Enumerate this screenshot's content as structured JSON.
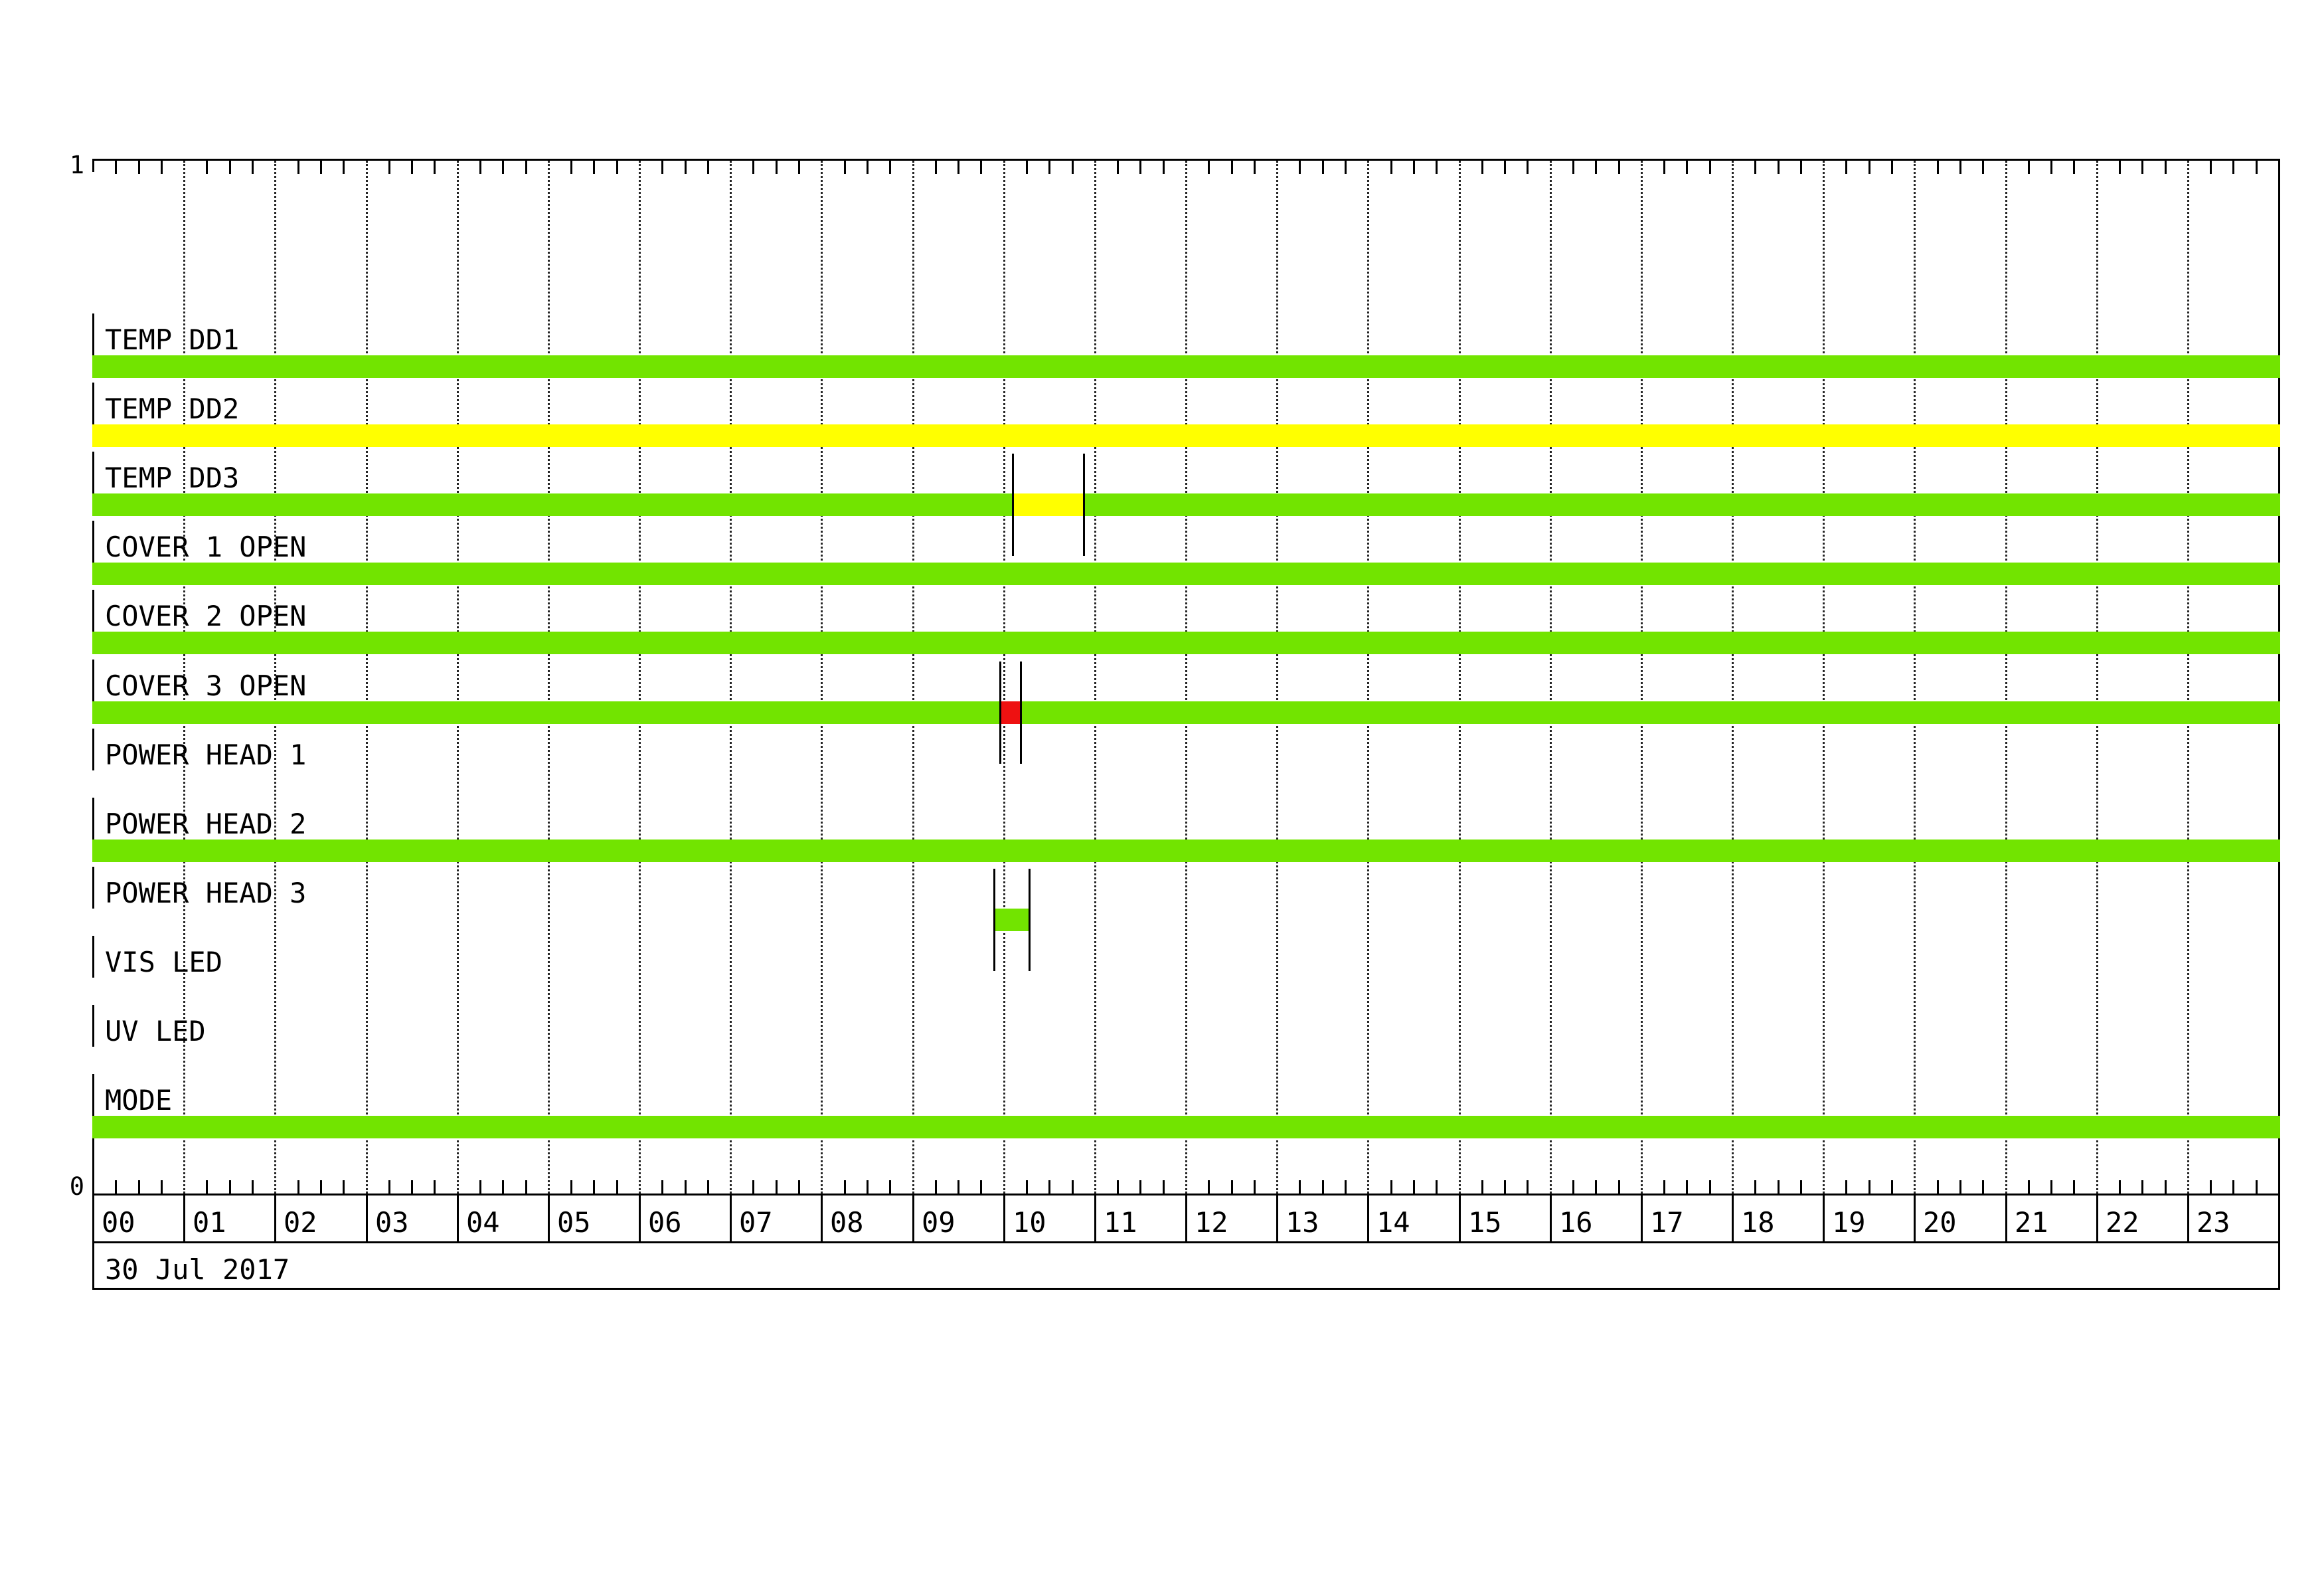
{
  "chart_data": {
    "type": "bar",
    "variant": "status-timeline-gantt",
    "date": "30 Jul 2017",
    "y_axis": {
      "top_label": "1",
      "bottom_label": "0"
    },
    "x_axis": {
      "hours": [
        "00",
        "01",
        "02",
        "03",
        "04",
        "05",
        "06",
        "07",
        "08",
        "09",
        "10",
        "11",
        "12",
        "13",
        "14",
        "15",
        "16",
        "17",
        "18",
        "19",
        "20",
        "21",
        "22",
        "23"
      ],
      "minor_tick_minutes": 15,
      "gridlines": "dotted-hourly"
    },
    "colors": {
      "green": "#72E400",
      "yellow": "#FFFF00",
      "red": "#EE1111"
    },
    "rows": [
      {
        "label": "TEMP DD1",
        "segments": [
          {
            "start": 0,
            "end": 24,
            "color": "green",
            "start_time": "00:00",
            "end_time": "24:00",
            "markers": false
          }
        ]
      },
      {
        "label": "TEMP DD2",
        "segments": [
          {
            "start": 0,
            "end": 24,
            "color": "yellow",
            "start_time": "00:00",
            "end_time": "24:00",
            "markers": false
          }
        ]
      },
      {
        "label": "TEMP DD3",
        "segments": [
          {
            "start": 0,
            "end": 24,
            "color": "green",
            "start_time": "00:00",
            "end_time": "24:00",
            "markers": false
          },
          {
            "start": 10.1,
            "end": 10.9,
            "color": "yellow",
            "start_time": "10:06",
            "end_time": "10:54",
            "markers": true
          }
        ]
      },
      {
        "label": "COVER 1 OPEN",
        "segments": [
          {
            "start": 0,
            "end": 24,
            "color": "green",
            "start_time": "00:00",
            "end_time": "24:00",
            "markers": false
          }
        ]
      },
      {
        "label": "COVER 2 OPEN",
        "segments": [
          {
            "start": 0,
            "end": 24,
            "color": "green",
            "start_time": "00:00",
            "end_time": "24:00",
            "markers": false
          }
        ]
      },
      {
        "label": "COVER 3 OPEN",
        "segments": [
          {
            "start": 0,
            "end": 24,
            "color": "green",
            "start_time": "00:00",
            "end_time": "24:00",
            "markers": false
          },
          {
            "start": 9.96,
            "end": 10.21,
            "color": "red",
            "start_time": "09:57",
            "end_time": "10:13",
            "markers": true
          }
        ]
      },
      {
        "label": "POWER HEAD 1",
        "segments": []
      },
      {
        "label": "POWER HEAD 2",
        "segments": [
          {
            "start": 0,
            "end": 24,
            "color": "green",
            "start_time": "00:00",
            "end_time": "24:00",
            "markers": false
          }
        ]
      },
      {
        "label": "POWER HEAD 3",
        "segments": [
          {
            "start": 9.89,
            "end": 10.3,
            "color": "green",
            "start_time": "09:54",
            "end_time": "10:18",
            "markers": true
          }
        ]
      },
      {
        "label": "VIS LED",
        "segments": []
      },
      {
        "label": "UV LED",
        "segments": []
      },
      {
        "label": "MODE",
        "segments": [
          {
            "start": 0,
            "end": 24,
            "color": "green",
            "start_time": "00:00",
            "end_time": "24:00",
            "markers": false
          }
        ]
      }
    ]
  }
}
